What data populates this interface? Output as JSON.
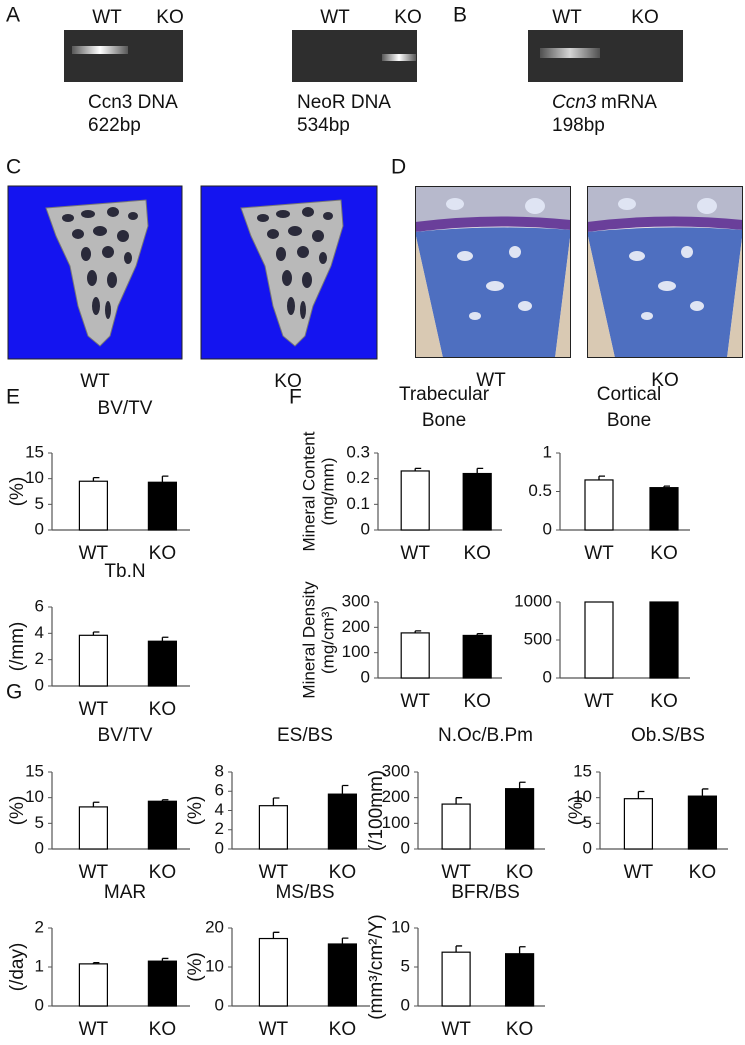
{
  "panels": [
    "A",
    "B",
    "C",
    "D",
    "E",
    "F",
    "G"
  ],
  "gels": [
    {
      "lanes": [
        "WT",
        "KO"
      ],
      "name": "Ccn3 DNA",
      "size": "622bp"
    },
    {
      "lanes": [
        "WT",
        "KO"
      ],
      "name": "NeoR DNA",
      "size": "534bp"
    },
    {
      "lanes": [
        "WT",
        "KO"
      ],
      "gene": "Ccn3",
      "name": "mRNA",
      "size": "198bp"
    }
  ],
  "images": {
    "microct": [
      "WT",
      "KO"
    ],
    "histology": [
      "WT",
      "KO"
    ]
  },
  "chart_data": [
    {
      "type": "bar",
      "title": "BV/TV",
      "ylabel": "(%)",
      "categories": [
        "WT",
        "KO"
      ],
      "values": [
        9.5,
        9.3
      ],
      "errors": [
        0.7,
        1.2
      ],
      "colors": [
        "#ffffff",
        "#000000"
      ],
      "ylim": [
        0,
        15
      ],
      "yticks": [
        0,
        5,
        10,
        15
      ]
    },
    {
      "type": "bar",
      "title": "Tb.N",
      "ylabel": "(/mm)",
      "categories": [
        "WT",
        "KO"
      ],
      "values": [
        3.85,
        3.4
      ],
      "errors": [
        0.25,
        0.3
      ],
      "colors": [
        "#ffffff",
        "#000000"
      ],
      "ylim": [
        0,
        6
      ],
      "yticks": [
        0,
        2,
        4,
        6
      ]
    },
    {
      "type": "bar",
      "title": [
        "Trabecular",
        "Bone"
      ],
      "ylabel": [
        "Mineral Content",
        "(mg/mm)"
      ],
      "categories": [
        "WT",
        "KO"
      ],
      "values": [
        0.23,
        0.22
      ],
      "errors": [
        0.01,
        0.02
      ],
      "colors": [
        "#ffffff",
        "#000000"
      ],
      "ylim": [
        0,
        0.3
      ],
      "yticks": [
        0,
        0.1,
        0.2,
        0.3
      ]
    },
    {
      "type": "bar",
      "title": [
        "Cortical",
        "Bone"
      ],
      "categories": [
        "WT",
        "KO"
      ],
      "values": [
        0.65,
        0.55
      ],
      "errors": [
        0.05,
        0.02
      ],
      "colors": [
        "#ffffff",
        "#000000"
      ],
      "ylim": [
        0,
        1
      ],
      "yticks": [
        0,
        0.5,
        1
      ]
    },
    {
      "type": "bar",
      "ylabel": [
        "Mineral Density",
        "(mg/cm³)"
      ],
      "categories": [
        "WT",
        "KO"
      ],
      "values": [
        178,
        168
      ],
      "errors": [
        8,
        7
      ],
      "colors": [
        "#ffffff",
        "#000000"
      ],
      "ylim": [
        0,
        300
      ],
      "yticks": [
        0,
        100,
        200,
        300
      ]
    },
    {
      "type": "bar",
      "categories": [
        "WT",
        "KO"
      ],
      "values": [
        1000,
        1000
      ],
      "colors": [
        "#ffffff",
        "#000000"
      ],
      "ylim": [
        0,
        1000
      ],
      "yticks": [
        0,
        500,
        1000
      ]
    },
    {
      "type": "bar",
      "title": "BV/TV",
      "ylabel": "(%)",
      "categories": [
        "WT",
        "KO"
      ],
      "values": [
        8.2,
        9.3
      ],
      "errors": [
        0.9,
        0.3
      ],
      "colors": [
        "#ffffff",
        "#000000"
      ],
      "ylim": [
        0,
        15
      ],
      "yticks": [
        0,
        5,
        10,
        15
      ]
    },
    {
      "type": "bar",
      "title": "ES/BS",
      "ylabel": "(%)",
      "categories": [
        "WT",
        "KO"
      ],
      "values": [
        4.5,
        5.7
      ],
      "errors": [
        0.8,
        0.9
      ],
      "colors": [
        "#ffffff",
        "#000000"
      ],
      "ylim": [
        0,
        8
      ],
      "yticks": [
        0,
        2,
        4,
        6,
        8
      ]
    },
    {
      "type": "bar",
      "title": "N.Oc/B.Pm",
      "ylabel": "(/100mm)",
      "categories": [
        "WT",
        "KO"
      ],
      "values": [
        175,
        235
      ],
      "errors": [
        25,
        25
      ],
      "colors": [
        "#ffffff",
        "#000000"
      ],
      "ylim": [
        0,
        300
      ],
      "yticks": [
        0,
        100,
        200,
        300
      ]
    },
    {
      "type": "bar",
      "title": "Ob.S/BS",
      "ylabel": "(%)",
      "categories": [
        "WT",
        "KO"
      ],
      "values": [
        9.8,
        10.3
      ],
      "errors": [
        1.4,
        1.4
      ],
      "colors": [
        "#ffffff",
        "#000000"
      ],
      "ylim": [
        0,
        15
      ],
      "yticks": [
        0,
        5,
        10,
        15
      ]
    },
    {
      "type": "bar",
      "title": "MAR",
      "ylabel": "(/day)",
      "categories": [
        "WT",
        "KO"
      ],
      "values": [
        1.08,
        1.15
      ],
      "errors": [
        0.03,
        0.07
      ],
      "colors": [
        "#ffffff",
        "#000000"
      ],
      "ylim": [
        0,
        2
      ],
      "yticks": [
        0,
        1,
        2
      ]
    },
    {
      "type": "bar",
      "title": "MS/BS",
      "ylabel": "(%)",
      "categories": [
        "WT",
        "KO"
      ],
      "values": [
        17.3,
        15.9
      ],
      "errors": [
        1.6,
        1.5
      ],
      "colors": [
        "#ffffff",
        "#000000"
      ],
      "ylim": [
        0,
        20
      ],
      "yticks": [
        0,
        10,
        20
      ]
    },
    {
      "type": "bar",
      "title": "BFR/BS",
      "ylabel": "(mm³/cm²/Y)",
      "categories": [
        "WT",
        "KO"
      ],
      "values": [
        6.9,
        6.7
      ],
      "errors": [
        0.8,
        0.9
      ],
      "colors": [
        "#ffffff",
        "#000000"
      ],
      "ylim": [
        0,
        10
      ],
      "yticks": [
        0,
        5,
        10
      ]
    }
  ]
}
